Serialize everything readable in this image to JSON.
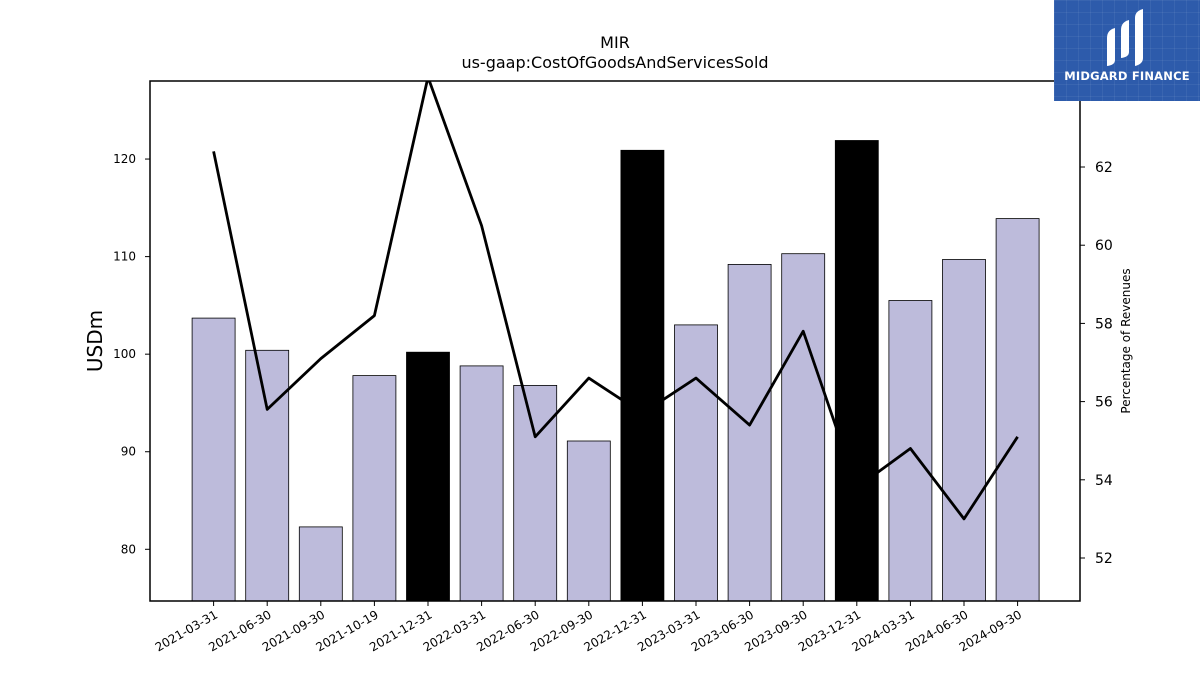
{
  "logo": {
    "text": "MIDGARD FINANCE"
  },
  "chart_data": {
    "type": "bar",
    "title": "MIR",
    "subtitle": "us-gaap:CostOfGoodsAndServicesSold",
    "ylabel": "USDm",
    "y2label": "Percentage of Revenues",
    "categories": [
      "2021-03-31",
      "2021-06-30",
      "2021-09-30",
      "2021-10-19",
      "2021-12-31",
      "2022-03-31",
      "2022-06-30",
      "2022-09-30",
      "2022-12-31",
      "2023-03-31",
      "2023-06-30",
      "2023-09-30",
      "2023-12-31",
      "2024-03-31",
      "2024-06-30",
      "2024-09-30"
    ],
    "series": [
      {
        "type": "bar",
        "values": [
          103.7,
          100.4,
          82.3,
          97.8,
          100.2,
          98.8,
          96.8,
          91.1,
          120.9,
          103.0,
          109.2,
          110.3,
          121.9,
          105.5,
          109.7,
          113.9
        ]
      },
      {
        "type": "line",
        "axis": "right",
        "values": [
          62.4,
          55.8,
          57.1,
          58.2,
          64.3,
          60.5,
          55.1,
          56.6,
          55.7,
          56.6,
          55.4,
          57.8,
          53.8,
          54.8,
          53.0,
          55.1
        ]
      }
    ],
    "highlight_indices": [
      4,
      8,
      12
    ],
    "colors": {
      "bar": "#bdbbdb",
      "bar_highlight": "#000000",
      "line": "#000000",
      "logo_bg": "#2d5bab"
    },
    "ylim": [
      74.7,
      128.0
    ],
    "y2lim": [
      50.9,
      64.2
    ],
    "yticks": [
      80,
      90,
      100,
      110,
      120
    ],
    "y2ticks": [
      52,
      54,
      56,
      58,
      60,
      62
    ],
    "grid": false,
    "legend": "none"
  }
}
